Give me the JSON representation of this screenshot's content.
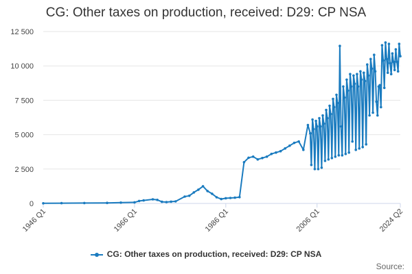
{
  "title": "CG: Other taxes on production, received: D29: CP NSA",
  "legend_label": "CG: Other taxes on production, received: D29: CP NSA",
  "credit": "Source:",
  "colors": {
    "series": "#1a7bbf",
    "grid": "#e6e6e6",
    "axis": "#ccd6eb"
  },
  "chart_data": {
    "type": "line",
    "title": "CG: Other taxes on production, received: D29: CP NSA",
    "xlabel": "",
    "ylabel": "",
    "ylim": [
      0,
      12500
    ],
    "yticks": [
      0,
      2500,
      5000,
      7500,
      10000,
      12500
    ],
    "ytick_labels": [
      "0",
      "2 500",
      "5 000",
      "7 500",
      "10 000",
      "12 500"
    ],
    "xlim": [
      1946.0,
      2024.25
    ],
    "xticks": [
      1946.0,
      1966.0,
      1986.0,
      2006.0,
      2024.25
    ],
    "xtick_labels": [
      "1946 Q1",
      "1966 Q1",
      "1986 Q1",
      "2006 Q1",
      "2024 Q2"
    ],
    "grid": "horizontal",
    "legend": "bottom",
    "series": [
      {
        "name": "CG: Other taxes on production, received: D29: CP NSA",
        "x": [
          1946.0,
          1950.0,
          1955.0,
          1960.0,
          1963.0,
          1966.0,
          1967.0,
          1968.0,
          1970.0,
          1971.0,
          1972.0,
          1973.0,
          1974.0,
          1975.0,
          1977.0,
          1978.0,
          1979.0,
          1980.0,
          1981.0,
          1982.0,
          1983.0,
          1984.0,
          1985.0,
          1986.0,
          1987.0,
          1988.0,
          1989.0,
          1990.0,
          1991.0,
          1992.0,
          1993.0,
          1994.0,
          1995.0,
          1996.0,
          1997.0,
          1998.0,
          1999.0,
          2000.0,
          2001.0,
          2002.0,
          2003.0,
          2004.0,
          2004.5,
          2004.75,
          2005.0,
          2005.25,
          2005.5,
          2005.75,
          2006.0,
          2006.25,
          2006.5,
          2006.75,
          2007.0,
          2007.25,
          2007.5,
          2007.75,
          2008.0,
          2008.25,
          2008.5,
          2008.75,
          2009.0,
          2009.25,
          2009.5,
          2009.75,
          2010.0,
          2010.25,
          2010.5,
          2010.75,
          2011.0,
          2011.25,
          2011.5,
          2011.75,
          2012.0,
          2012.25,
          2012.5,
          2012.75,
          2013.0,
          2013.25,
          2013.5,
          2013.75,
          2014.0,
          2014.25,
          2014.5,
          2014.75,
          2015.0,
          2015.25,
          2015.5,
          2015.75,
          2016.0,
          2016.25,
          2016.5,
          2016.75,
          2017.0,
          2017.25,
          2017.5,
          2017.75,
          2018.0,
          2018.25,
          2018.5,
          2018.75,
          2019.0,
          2019.25,
          2019.5,
          2019.75,
          2020.0,
          2020.25,
          2020.5,
          2020.75,
          2021.0,
          2021.25,
          2021.5,
          2021.75,
          2022.0,
          2022.25,
          2022.5,
          2022.75,
          2023.0,
          2023.25,
          2023.5,
          2023.75,
          2024.0,
          2024.25
        ],
        "values": [
          10,
          20,
          30,
          40,
          60,
          80,
          180,
          220,
          300,
          260,
          120,
          100,
          130,
          150,
          500,
          560,
          800,
          1000,
          1250,
          900,
          700,
          450,
          320,
          380,
          400,
          420,
          460,
          3000,
          3320,
          3400,
          3200,
          3300,
          3400,
          3600,
          3700,
          3800,
          4000,
          4200,
          4400,
          4500,
          3900,
          5700,
          5100,
          2800,
          6100,
          5400,
          2500,
          6000,
          5600,
          2500,
          6200,
          5600,
          2600,
          6400,
          5800,
          3100,
          6800,
          6200,
          3200,
          7100,
          6500,
          3300,
          7600,
          7000,
          3400,
          7900,
          7300,
          3500,
          11450,
          5600,
          3500,
          8500,
          7700,
          3600,
          9000,
          8200,
          3700,
          9400,
          8500,
          4500,
          9300,
          8700,
          3900,
          9400,
          8500,
          4000,
          9600,
          9000,
          4100,
          9500,
          8900,
          4300,
          10100,
          9300,
          6400,
          10500,
          9800,
          6600,
          10800,
          9600,
          7400,
          6400,
          8500,
          8600,
          7000,
          11500,
          10400,
          8400,
          11700,
          10500,
          9500,
          11600,
          10200,
          9400,
          10900,
          10300,
          9700,
          11200,
          10300,
          9600,
          11600,
          10700
        ]
      }
    ]
  }
}
